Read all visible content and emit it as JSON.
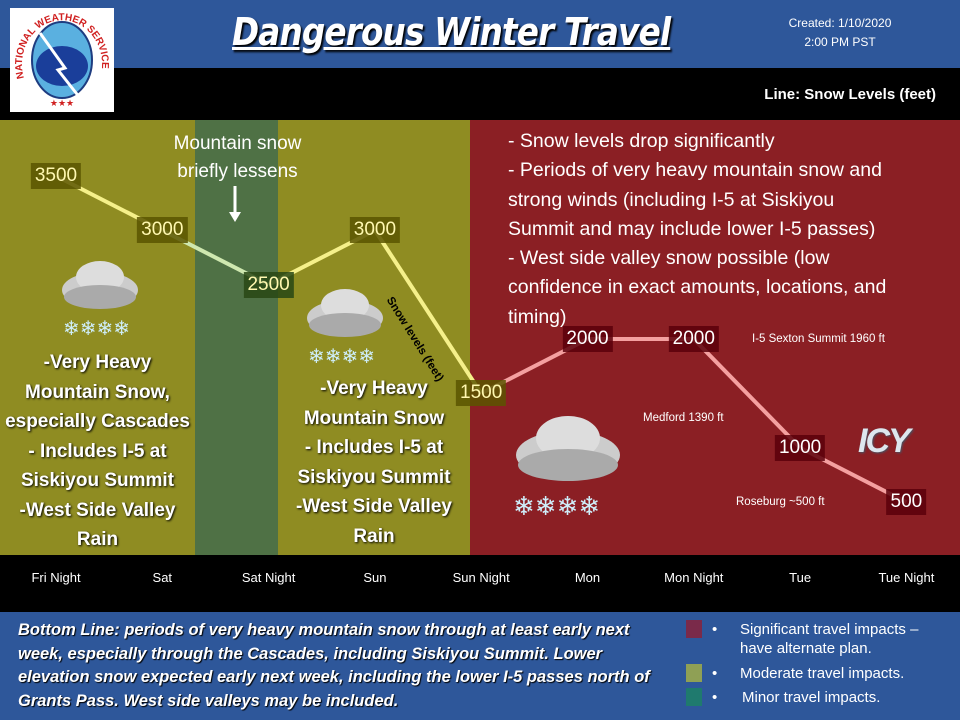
{
  "header": {
    "title": "Dangerous Winter Travel",
    "created": "Created: 1/10/2020",
    "time": "2:00 PM PST",
    "logo_text": "NATIONAL WEATHER SERVICE"
  },
  "legend_line": "Line: Snow Levels (feet)",
  "colors": {
    "significant": "#8b1f24",
    "moderate": "#8f8c22",
    "minor": "#4f7145",
    "header": "#2e579a"
  },
  "notes": {
    "lessens": [
      "Mountain snow",
      "briefly lessens"
    ],
    "left": [
      "-Very Heavy",
      "Mountain Snow,",
      "especially Cascades",
      "- Includes I-5 at",
      "Siskiyou Summit",
      "-West Side Valley",
      "Rain"
    ],
    "mid": [
      "-Very Heavy",
      "Mountain Snow",
      "- Includes I-5 at",
      "Siskiyou Summit",
      "-West Side Valley",
      "Rain"
    ],
    "right": [
      "- Snow levels drop significantly",
      "- Periods of very heavy mountain snow and",
      "strong winds (including I-5 at Siskiyou",
      "Summit and may include lower I-5 passes)",
      "- West side valley snow possible (low",
      "confidence in exact amounts, locations, and",
      "timing)"
    ],
    "sexton": "I-5 Sexton Summit 1960 ft",
    "medford": "Medford 1390 ft",
    "roseburg": "Roseburg ~500 ft",
    "icy": "ICY"
  },
  "chart_data": {
    "type": "line",
    "series_label": "Snow levels (feet)",
    "categories": [
      "Fri Night",
      "Sat",
      "Sat Night",
      "Sun",
      "Sun Night",
      "Mon",
      "Mon Night",
      "Tue",
      "Tue Night"
    ],
    "values": [
      3500,
      3000,
      2500,
      3000,
      1500,
      2000,
      2000,
      1000,
      500
    ],
    "impact": [
      "moderate",
      "moderate",
      "minor",
      "moderate",
      "moderate",
      "significant",
      "significant",
      "significant",
      "significant"
    ]
  },
  "bottom_line": "Bottom Line: periods of very heavy mountain snow through at least early next week, especially through the Cascades, including Siskiyou Summit. Lower elevation snow expected early next week, including the lower I-5 passes north of Grants Pass. West side valleys may be included.",
  "impact_legend": [
    {
      "label": "Significant travel impacts – have alternate plan.",
      "color": "#7a2a4a"
    },
    {
      "label": "Moderate travel impacts.",
      "color": "#8fa055"
    },
    {
      "label": "Minor travel impacts.",
      "color": "#1f7a6e"
    }
  ]
}
